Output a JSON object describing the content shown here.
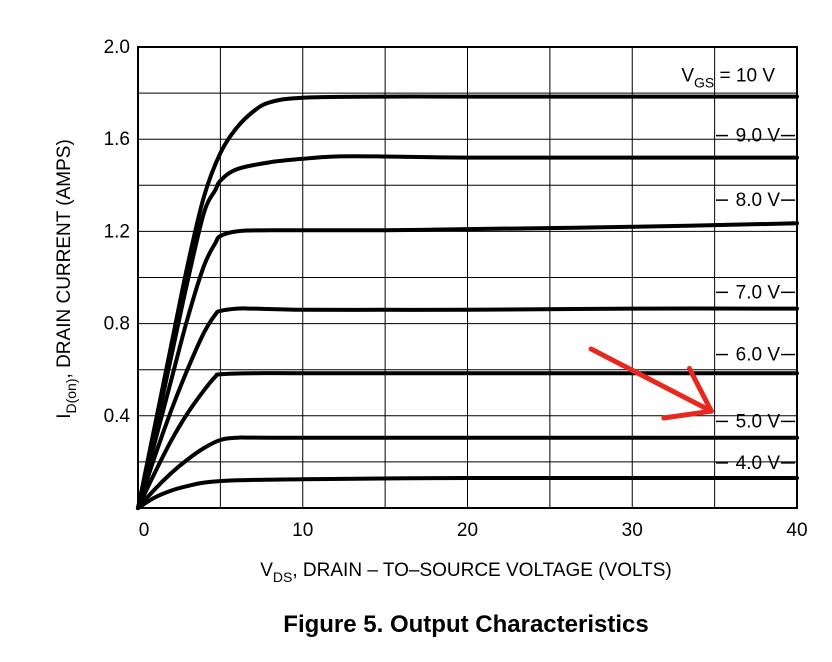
{
  "chart_data": {
    "type": "line",
    "xlabel": {
      "main": "V",
      "sub": "DS",
      "rest": ", DRAIN – TO–SOURCE VOLTAGE (VOLTS)"
    },
    "ylabel": {
      "main": "I",
      "sub": "D(on)",
      "rest": ", DRAIN CURRENT (AMPS)"
    },
    "xlim": [
      0,
      40
    ],
    "ylim": [
      0,
      2.0
    ],
    "x_ticks": [
      {
        "value": 0,
        "label": "0"
      },
      {
        "value": 10,
        "label": "10"
      },
      {
        "value": 20,
        "label": "20"
      },
      {
        "value": 30,
        "label": "30"
      },
      {
        "value": 40,
        "label": "40"
      }
    ],
    "y_ticks": [
      {
        "value": 0.4,
        "label": "0.4"
      },
      {
        "value": 0.8,
        "label": "0.8"
      },
      {
        "value": 1.2,
        "label": "1.2"
      },
      {
        "value": 1.6,
        "label": "1.6"
      },
      {
        "value": 2.0,
        "label": "2.0"
      }
    ],
    "grid": true,
    "series": [
      {
        "name": "10 V",
        "legend": {
          "main": "V",
          "sub": "GS",
          "rest": " = 10 V"
        },
        "label_y": 1.88,
        "points": [
          [
            0,
            0
          ],
          [
            1,
            0.35
          ],
          [
            2,
            0.7
          ],
          [
            3,
            1.05
          ],
          [
            4,
            1.35
          ],
          [
            5,
            1.54
          ],
          [
            6,
            1.65
          ],
          [
            7,
            1.72
          ],
          [
            8,
            1.76
          ],
          [
            10,
            1.78
          ],
          [
            15,
            1.785
          ],
          [
            20,
            1.785
          ],
          [
            30,
            1.785
          ],
          [
            40,
            1.785
          ]
        ]
      },
      {
        "name": "9.0 V",
        "legend": {
          "main": "",
          "sub": "",
          "rest": "9.0 V"
        },
        "label_y": 1.62,
        "points": [
          [
            0,
            0
          ],
          [
            1,
            0.32
          ],
          [
            2,
            0.65
          ],
          [
            3,
            0.98
          ],
          [
            4,
            1.28
          ],
          [
            4.7,
            1.38
          ],
          [
            5,
            1.42
          ],
          [
            6,
            1.47
          ],
          [
            8,
            1.5
          ],
          [
            10,
            1.515
          ],
          [
            12,
            1.525
          ],
          [
            15,
            1.525
          ],
          [
            20,
            1.52
          ],
          [
            30,
            1.52
          ],
          [
            40,
            1.52
          ]
        ]
      },
      {
        "name": "8.0 V",
        "legend": {
          "main": "",
          "sub": "",
          "rest": "8.0 V"
        },
        "label_y": 1.34,
        "points": [
          [
            0,
            0
          ],
          [
            1,
            0.28
          ],
          [
            2,
            0.55
          ],
          [
            3,
            0.82
          ],
          [
            4,
            1.05
          ],
          [
            4.7,
            1.15
          ],
          [
            5,
            1.18
          ],
          [
            6,
            1.2
          ],
          [
            8,
            1.205
          ],
          [
            15,
            1.205
          ],
          [
            20,
            1.21
          ],
          [
            30,
            1.22
          ],
          [
            40,
            1.235
          ]
        ]
      },
      {
        "name": "7.0 V",
        "legend": {
          "main": "",
          "sub": "",
          "rest": "7.0 V"
        },
        "label_y": 0.94,
        "points": [
          [
            0,
            0
          ],
          [
            1,
            0.22
          ],
          [
            2,
            0.42
          ],
          [
            3,
            0.6
          ],
          [
            4,
            0.76
          ],
          [
            4.7,
            0.84
          ],
          [
            5,
            0.855
          ],
          [
            6,
            0.865
          ],
          [
            7,
            0.865
          ],
          [
            10,
            0.86
          ],
          [
            15,
            0.86
          ],
          [
            20,
            0.86
          ],
          [
            30,
            0.865
          ],
          [
            40,
            0.865
          ]
        ]
      },
      {
        "name": "6.0 V",
        "legend": {
          "main": "",
          "sub": "",
          "rest": "6.0 V"
        },
        "label_y": 0.67,
        "points": [
          [
            0,
            0
          ],
          [
            1,
            0.15
          ],
          [
            2,
            0.29
          ],
          [
            3,
            0.41
          ],
          [
            4,
            0.51
          ],
          [
            4.7,
            0.57
          ],
          [
            5,
            0.58
          ],
          [
            7,
            0.585
          ],
          [
            10,
            0.585
          ],
          [
            20,
            0.585
          ],
          [
            30,
            0.585
          ],
          [
            40,
            0.585
          ]
        ]
      },
      {
        "name": "5.0 V",
        "legend": {
          "main": "",
          "sub": "",
          "rest": "5.0 V"
        },
        "label_y": 0.38,
        "points": [
          [
            0,
            0
          ],
          [
            1,
            0.08
          ],
          [
            2,
            0.15
          ],
          [
            3,
            0.21
          ],
          [
            4,
            0.26
          ],
          [
            5,
            0.295
          ],
          [
            6,
            0.305
          ],
          [
            8,
            0.305
          ],
          [
            20,
            0.305
          ],
          [
            40,
            0.305
          ]
        ]
      },
      {
        "name": "4.0 V",
        "legend": {
          "main": "",
          "sub": "",
          "rest": "4.0 V"
        },
        "label_y": 0.2,
        "points": [
          [
            0,
            0
          ],
          [
            1,
            0.045
          ],
          [
            2,
            0.075
          ],
          [
            3,
            0.095
          ],
          [
            4,
            0.11
          ],
          [
            6,
            0.12
          ],
          [
            10,
            0.125
          ],
          [
            20,
            0.13
          ],
          [
            30,
            0.13
          ],
          [
            40,
            0.13
          ]
        ]
      }
    ],
    "annotation": {
      "type": "arrow",
      "color": "#e8281e",
      "from": [
        27.5,
        0.69
      ],
      "to": [
        34.8,
        0.42
      ],
      "points_to": "5.0 V"
    }
  },
  "caption": "Figure 5. Output Characteristics"
}
